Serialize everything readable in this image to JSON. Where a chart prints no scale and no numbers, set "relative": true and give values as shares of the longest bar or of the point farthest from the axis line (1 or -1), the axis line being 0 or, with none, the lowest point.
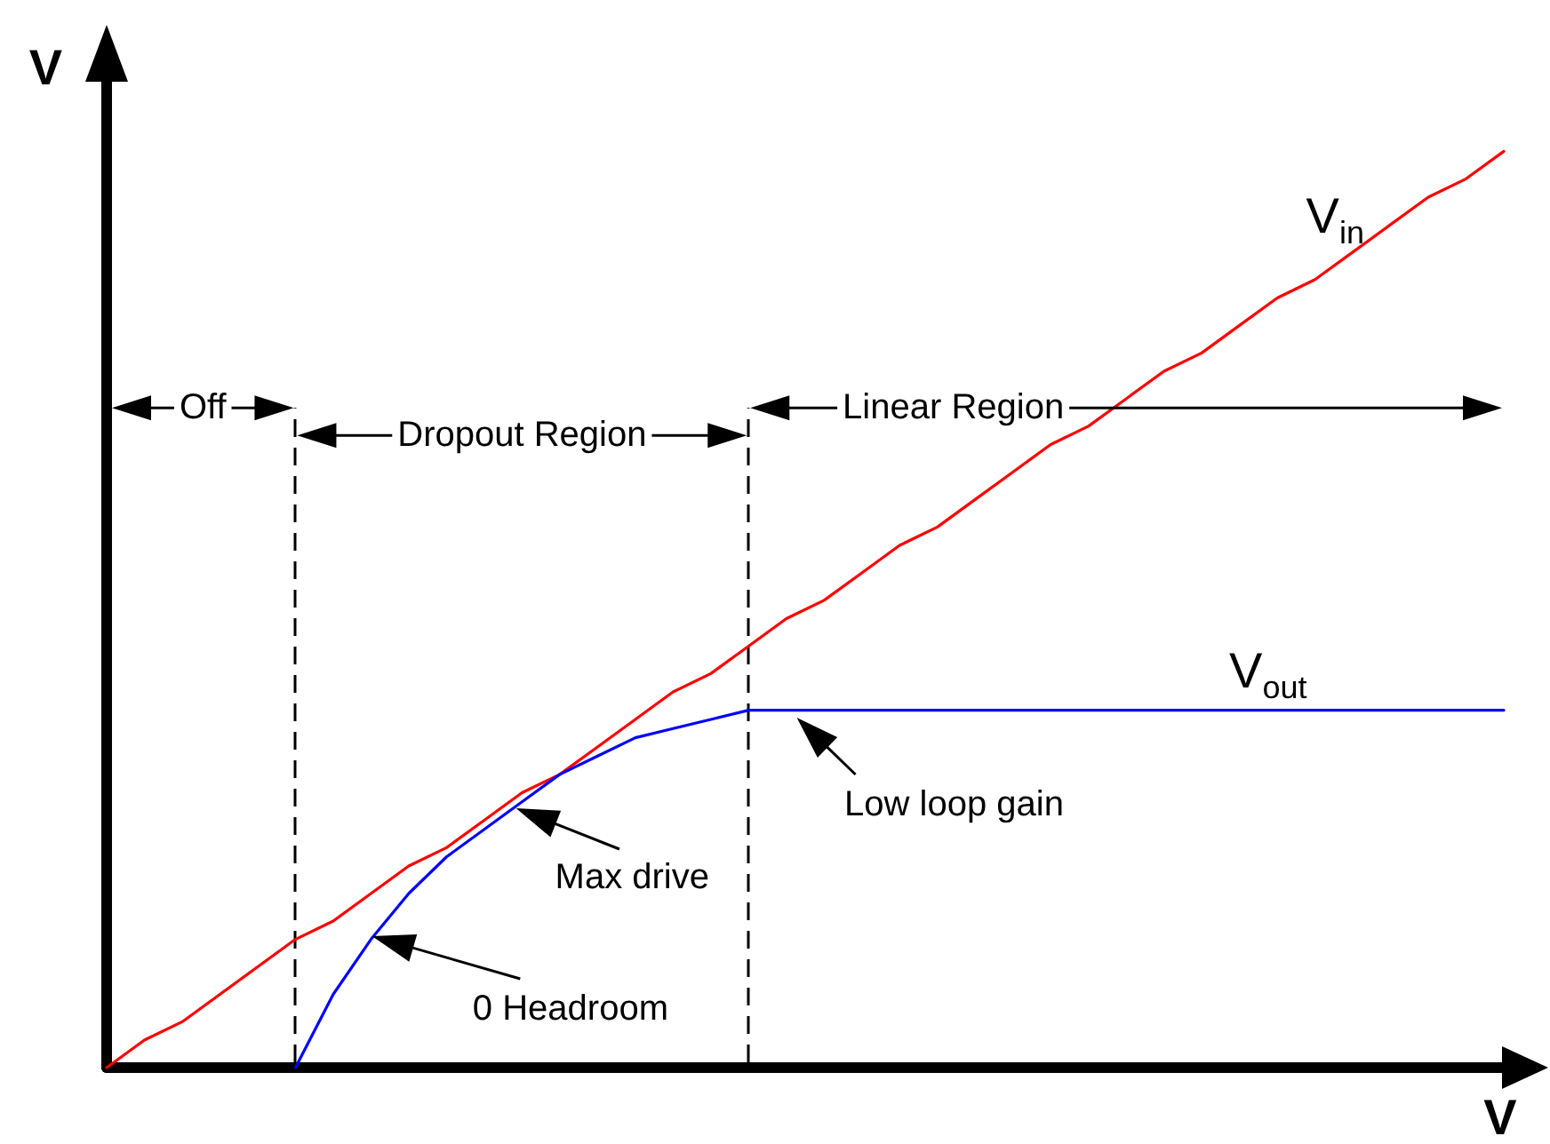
{
  "chart_data": {
    "type": "line",
    "relative": true,
    "xlabel": "V",
    "ylabel": "V",
    "grid": false,
    "marker": "none",
    "categories": [
      null,
      null,
      null,
      null,
      null,
      null,
      null,
      null,
      null,
      null,
      null,
      null,
      null,
      null,
      null,
      null,
      null,
      null,
      null,
      null,
      null,
      null,
      null,
      null,
      null,
      null,
      null,
      null,
      null,
      null,
      null,
      null,
      null,
      null,
      null,
      null,
      null,
      null
    ],
    "series": [
      {
        "name": "V$_{in}$",
        "color": "#ff0000",
        "values": [
          0,
          0.03,
          0.05,
          0.08,
          0.11,
          0.14,
          0.16,
          0.19,
          0.22,
          0.24,
          0.27,
          0.3,
          0.32,
          0.35,
          0.38,
          0.41,
          0.43,
          0.46,
          0.49,
          0.51,
          0.54,
          0.57,
          0.59,
          0.62,
          0.65,
          0.68,
          0.7,
          0.73,
          0.76,
          0.78,
          0.81,
          0.84,
          0.86,
          0.89,
          0.92,
          0.95,
          0.97,
          1
        ]
      },
      {
        "name": "V$_{out}$",
        "color": "#0000ff",
        "values": [
          null,
          null,
          null,
          null,
          null,
          0,
          0.08,
          0.14,
          0.19,
          0.23,
          0.26,
          0.29,
          0.32,
          0.34,
          0.36,
          0.37,
          0.38,
          0.39,
          0.39,
          0.39,
          0.39,
          0.39,
          0.39,
          0.39,
          0.39,
          0.39,
          0.39,
          0.39,
          0.39,
          0.39,
          0.39,
          0.39,
          0.39,
          0.39,
          0.39,
          0.39,
          0.39,
          0.39
        ]
      }
    ],
    "annotations": [
      "Off",
      "Dropout Region",
      "Linear Region",
      "Max drive",
      "0 Headroom",
      "Low loop gain"
    ]
  }
}
